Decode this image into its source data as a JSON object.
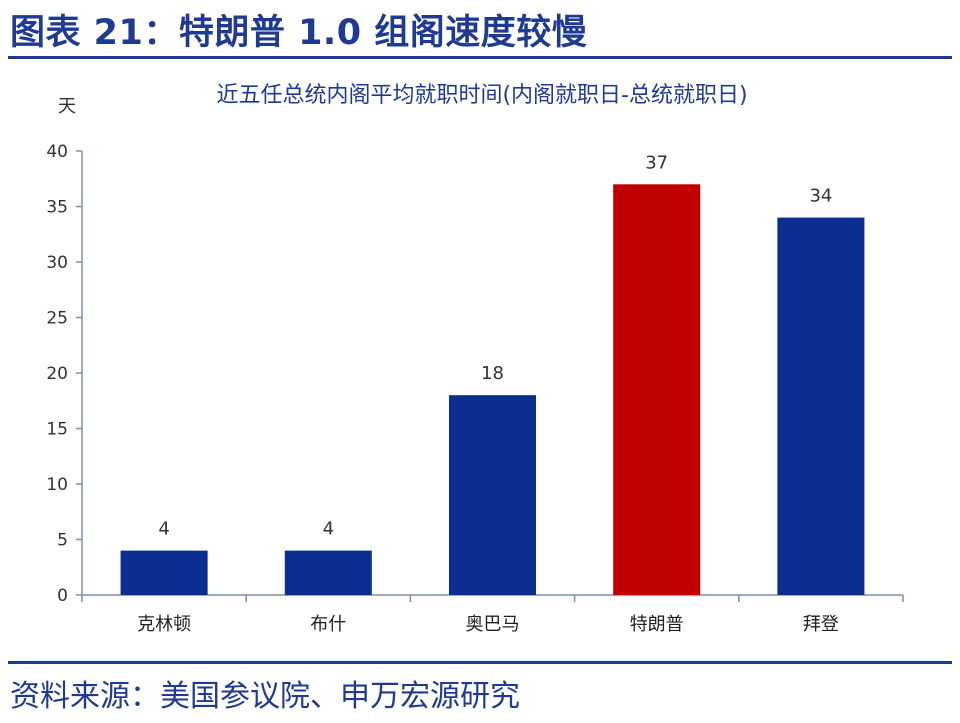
{
  "figure": {
    "title": "图表 21：特朗普 1.0 组阁速度较慢",
    "source": "资料来源：美国参议院、申万宏源研究"
  },
  "chart_data": {
    "type": "bar",
    "title": "近五任总统内阁平均就职时间(内阁就职日-总统就职日)",
    "ylabel": "天",
    "xlabel": "",
    "categories": [
      "克林顿",
      "布什",
      "奥巴马",
      "特朗普",
      "拜登"
    ],
    "values": [
      4,
      4,
      18,
      37,
      34
    ],
    "data_labels": [
      "4",
      "4",
      "18",
      "37",
      "34"
    ],
    "ylim": [
      0,
      40
    ],
    "yticks": [
      0,
      5,
      10,
      15,
      20,
      25,
      30,
      35,
      40
    ],
    "bar_colors": [
      "#0b2d8f",
      "#0b2d8f",
      "#0b2d8f",
      "#c00000",
      "#0b2d8f"
    ],
    "grid": false,
    "legend": "none"
  },
  "colors": {
    "title": "#1f3a93",
    "rule": "#1f3a93",
    "axis": "#7f8fa6",
    "bar_default": "#0b2d8f",
    "bar_highlight": "#c00000"
  }
}
